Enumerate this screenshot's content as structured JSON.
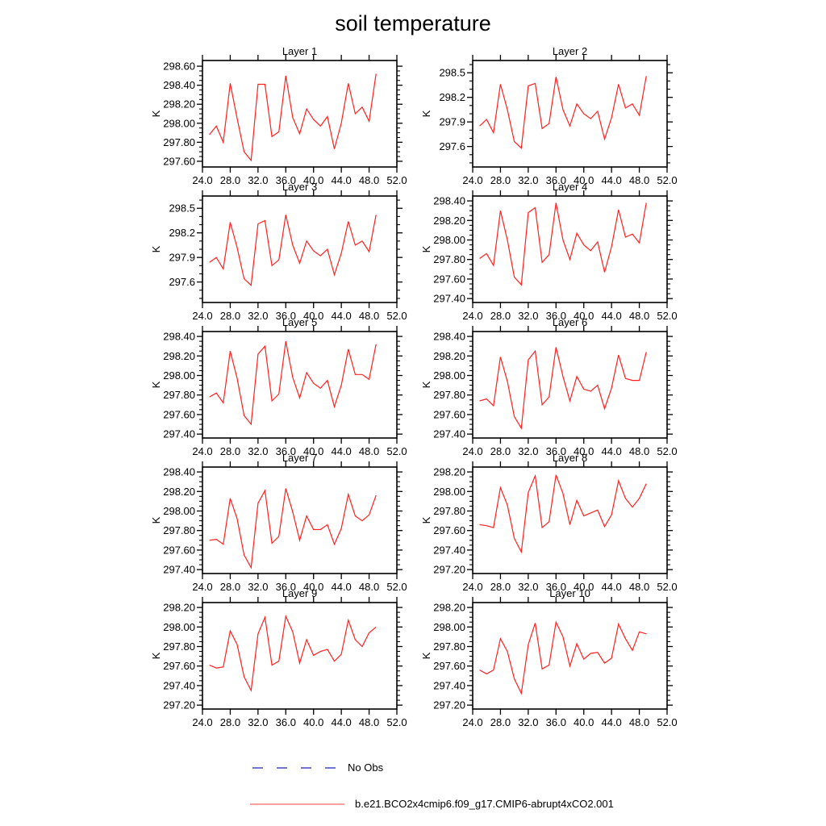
{
  "title": "soil temperature",
  "legend": {
    "items": [
      {
        "label": "No Obs",
        "style": "dashed",
        "color": "#7373d9"
      },
      {
        "label": "b.e21.BCO2x4cmip6.f09_g17.CMIP6-abrupt4xCO2.001",
        "style": "solid",
        "color": "#ff8080"
      }
    ]
  },
  "chart_data": {
    "type": "line",
    "title": "soil temperature",
    "line_color": "#ff2020",
    "x": [
      25,
      26,
      27,
      28,
      29,
      30,
      31,
      32,
      33,
      34,
      35,
      36,
      37,
      38,
      39,
      40,
      41,
      42,
      43,
      44,
      45,
      46,
      47,
      48,
      49
    ],
    "xlim": [
      24,
      52
    ],
    "xticks": [
      24,
      28,
      32,
      36,
      40,
      44,
      48,
      52
    ],
    "xtick_labels": [
      "24.0",
      "28.0",
      "32.0",
      "36.0",
      "40.0",
      "44.0",
      "48.0",
      "52.0"
    ],
    "panels": [
      {
        "title": "Layer 1",
        "ylabel": "K",
        "ylim": [
          297.54,
          298.66
        ],
        "y_minor_step": 0.05,
        "yticks": [
          297.6,
          297.8,
          298.0,
          298.2,
          298.4,
          298.6
        ],
        "ytick_labels": [
          "297.60",
          "297.80",
          "298.00",
          "298.20",
          "298.40",
          "298.60"
        ],
        "values": [
          297.88,
          297.97,
          297.8,
          298.42,
          298.05,
          297.7,
          297.61,
          298.41,
          298.41,
          297.86,
          297.91,
          298.5,
          298.06,
          297.89,
          298.15,
          298.04,
          297.97,
          298.07,
          297.73,
          298.0,
          298.42,
          298.1,
          298.17,
          298.02,
          298.52
        ]
      },
      {
        "title": "Layer 2",
        "ylabel": "K",
        "ylim": [
          297.35,
          298.65
        ],
        "y_minor_step": 0.1,
        "yticks": [
          297.6,
          297.9,
          298.2,
          298.5
        ],
        "ytick_labels": [
          "297.6",
          "297.9",
          "298.2",
          "298.5"
        ],
        "values": [
          297.85,
          297.93,
          297.77,
          298.36,
          298.05,
          297.66,
          297.58,
          298.34,
          298.37,
          297.82,
          297.88,
          298.45,
          298.05,
          297.85,
          298.12,
          298.0,
          297.94,
          298.03,
          297.69,
          297.95,
          298.36,
          298.07,
          298.12,
          297.98,
          298.46
        ]
      },
      {
        "title": "Layer 3",
        "ylabel": "K",
        "ylim": [
          297.35,
          298.65
        ],
        "y_minor_step": 0.1,
        "yticks": [
          297.6,
          297.9,
          298.2,
          298.5
        ],
        "ytick_labels": [
          "297.6",
          "297.9",
          "298.2",
          "298.5"
        ],
        "values": [
          297.84,
          297.9,
          297.76,
          298.33,
          298.02,
          297.64,
          297.56,
          298.31,
          298.35,
          297.8,
          297.87,
          298.42,
          298.05,
          297.83,
          298.1,
          297.98,
          297.92,
          298.0,
          297.69,
          297.95,
          298.34,
          298.05,
          298.1,
          297.97,
          298.42
        ]
      },
      {
        "title": "Layer 4",
        "ylabel": "K",
        "ylim": [
          297.36,
          298.45
        ],
        "y_minor_step": 0.05,
        "yticks": [
          297.4,
          297.6,
          297.8,
          298.0,
          298.2,
          298.4
        ],
        "ytick_labels": [
          "297.40",
          "297.60",
          "297.80",
          "298.00",
          "298.20",
          "298.40"
        ],
        "values": [
          297.81,
          297.86,
          297.74,
          298.3,
          298.0,
          297.62,
          297.54,
          298.28,
          298.33,
          297.77,
          297.85,
          298.38,
          298.0,
          297.8,
          298.07,
          297.95,
          297.89,
          297.98,
          297.67,
          297.93,
          298.31,
          298.03,
          298.06,
          297.97,
          298.38
        ]
      },
      {
        "title": "Layer 5",
        "ylabel": "K",
        "ylim": [
          297.36,
          298.45
        ],
        "y_minor_step": 0.05,
        "yticks": [
          297.4,
          297.6,
          297.8,
          298.0,
          298.2,
          298.4
        ],
        "ytick_labels": [
          "297.40",
          "297.60",
          "297.80",
          "298.00",
          "298.20",
          "298.40"
        ],
        "values": [
          297.78,
          297.82,
          297.72,
          298.25,
          297.97,
          297.59,
          297.5,
          298.22,
          298.3,
          297.74,
          297.81,
          298.35,
          297.98,
          297.77,
          298.03,
          297.92,
          297.87,
          297.95,
          297.68,
          297.9,
          298.27,
          298.01,
          298.01,
          297.96,
          298.32
        ]
      },
      {
        "title": "Layer 6",
        "ylabel": "K",
        "ylim": [
          297.36,
          298.45
        ],
        "y_minor_step": 0.05,
        "yticks": [
          297.4,
          297.6,
          297.8,
          298.0,
          298.2,
          298.4
        ],
        "ytick_labels": [
          "297.40",
          "297.60",
          "297.80",
          "298.00",
          "298.20",
          "298.40"
        ],
        "values": [
          297.74,
          297.76,
          297.69,
          298.19,
          297.94,
          297.58,
          297.46,
          298.16,
          298.25,
          297.7,
          297.78,
          298.29,
          297.99,
          297.74,
          297.99,
          297.86,
          297.84,
          297.9,
          297.66,
          297.87,
          298.21,
          297.97,
          297.95,
          297.95,
          298.24
        ]
      },
      {
        "title": "Layer 7",
        "ylabel": "K",
        "ylim": [
          297.36,
          298.45
        ],
        "y_minor_step": 0.05,
        "yticks": [
          297.4,
          297.6,
          297.8,
          298.0,
          298.2,
          298.4
        ],
        "ytick_labels": [
          "297.40",
          "297.60",
          "297.80",
          "298.00",
          "298.20",
          "298.40"
        ],
        "values": [
          297.7,
          297.71,
          297.66,
          298.13,
          297.92,
          297.55,
          297.42,
          298.08,
          298.21,
          297.67,
          297.74,
          298.23,
          297.99,
          297.7,
          297.95,
          297.81,
          297.81,
          297.86,
          297.66,
          297.82,
          298.17,
          297.95,
          297.9,
          297.96,
          298.16
        ]
      },
      {
        "title": "Layer 8",
        "ylabel": "K",
        "ylim": [
          297.16,
          298.25
        ],
        "y_minor_step": 0.05,
        "yticks": [
          297.2,
          297.4,
          297.6,
          297.8,
          298.0,
          298.2
        ],
        "ytick_labels": [
          "297.20",
          "297.40",
          "297.60",
          "297.80",
          "298.00",
          "298.20"
        ],
        "values": [
          297.66,
          297.65,
          297.63,
          298.04,
          297.86,
          297.52,
          297.38,
          297.99,
          298.16,
          297.63,
          297.69,
          298.17,
          297.98,
          297.66,
          297.91,
          297.75,
          297.78,
          297.81,
          297.64,
          297.76,
          298.11,
          297.93,
          297.84,
          297.93,
          298.08
        ]
      },
      {
        "title": "Layer 9",
        "ylabel": "K",
        "ylim": [
          297.16,
          298.25
        ],
        "y_minor_step": 0.05,
        "yticks": [
          297.2,
          297.4,
          297.6,
          297.8,
          298.0,
          298.2
        ],
        "ytick_labels": [
          "297.20",
          "297.40",
          "297.60",
          "297.80",
          "298.00",
          "298.20"
        ],
        "values": [
          297.61,
          297.58,
          297.59,
          297.96,
          297.82,
          297.49,
          297.35,
          297.93,
          298.1,
          297.61,
          297.65,
          298.11,
          297.95,
          297.63,
          297.87,
          297.71,
          297.75,
          297.77,
          297.65,
          297.72,
          298.07,
          297.87,
          297.8,
          297.94,
          298.0
        ]
      },
      {
        "title": "Layer 10",
        "ylabel": "K",
        "ylim": [
          297.16,
          298.25
        ],
        "y_minor_step": 0.05,
        "yticks": [
          297.2,
          297.4,
          297.6,
          297.8,
          298.0,
          298.2
        ],
        "ytick_labels": [
          "297.20",
          "297.40",
          "297.60",
          "297.80",
          "298.00",
          "298.20"
        ],
        "values": [
          297.56,
          297.52,
          297.56,
          297.88,
          297.75,
          297.47,
          297.32,
          297.82,
          298.04,
          297.57,
          297.61,
          298.05,
          297.9,
          297.6,
          297.83,
          297.67,
          297.73,
          297.74,
          297.63,
          297.68,
          298.03,
          297.88,
          297.76,
          297.95,
          297.93
        ]
      }
    ]
  }
}
